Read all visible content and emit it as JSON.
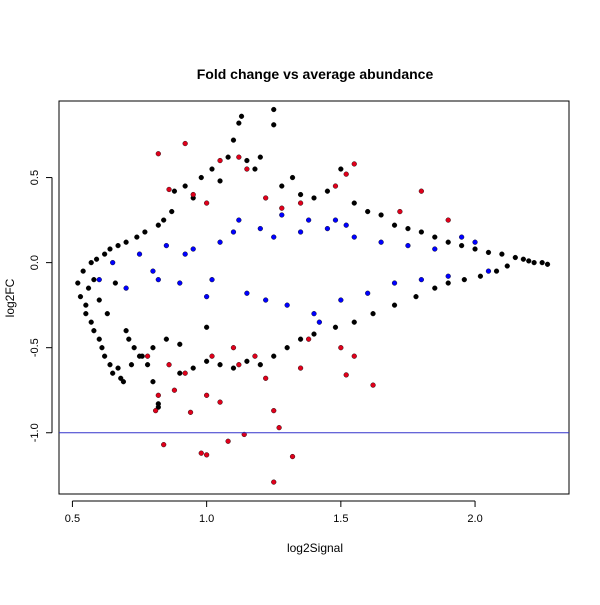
{
  "chart_data": {
    "type": "scatter",
    "title": "Fold change vs average abundance",
    "xlabel": "log2Signal",
    "ylabel": "log2FC",
    "xlim": [
      0.45,
      2.35
    ],
    "ylim": [
      -1.36,
      0.95
    ],
    "xticks": [
      0.5,
      1.0,
      1.5,
      2.0
    ],
    "xtick_labels": [
      "0.5",
      "1.0",
      "1.5",
      "2.0"
    ],
    "yticks": [
      -1.0,
      -0.5,
      0.0,
      0.5
    ],
    "ytick_labels": [
      "-1.0",
      "-0.5",
      "0.0",
      "0.5"
    ],
    "grid": false,
    "legend": "none",
    "hline": {
      "y": -1.0,
      "color": "#3333cc"
    },
    "series_colors": {
      "all": "#000000",
      "blue": "#0000ff",
      "red": "#e0001b"
    },
    "series": [
      {
        "name": "",
        "color": "#000000",
        "points": [
          [
            0.52,
            -0.12
          ],
          [
            0.53,
            -0.2
          ],
          [
            0.54,
            -0.05
          ],
          [
            0.55,
            -0.25
          ],
          [
            0.55,
            -0.3
          ],
          [
            0.56,
            -0.15
          ],
          [
            0.57,
            0.0
          ],
          [
            0.57,
            -0.35
          ],
          [
            0.58,
            -0.4
          ],
          [
            0.58,
            -0.1
          ],
          [
            0.59,
            0.02
          ],
          [
            0.6,
            -0.45
          ],
          [
            0.6,
            -0.22
          ],
          [
            0.61,
            -0.5
          ],
          [
            0.62,
            0.05
          ],
          [
            0.62,
            -0.55
          ],
          [
            0.63,
            -0.3
          ],
          [
            0.64,
            0.08
          ],
          [
            0.64,
            -0.6
          ],
          [
            0.65,
            -0.65
          ],
          [
            0.66,
            -0.12
          ],
          [
            0.67,
            0.1
          ],
          [
            0.67,
            -0.62
          ],
          [
            0.68,
            -0.68
          ],
          [
            0.69,
            -0.7
          ],
          [
            0.7,
            0.12
          ],
          [
            0.7,
            -0.4
          ],
          [
            0.72,
            -0.6
          ],
          [
            0.74,
            0.15
          ],
          [
            0.75,
            -0.55
          ],
          [
            0.77,
            0.18
          ],
          [
            0.8,
            -0.5
          ],
          [
            0.82,
            0.22
          ],
          [
            0.84,
            0.25
          ],
          [
            0.85,
            -0.45
          ],
          [
            0.87,
            0.3
          ],
          [
            0.88,
            0.42
          ],
          [
            0.9,
            -0.48
          ],
          [
            0.92,
            0.45
          ],
          [
            0.95,
            0.38
          ],
          [
            0.98,
            0.5
          ],
          [
            1.0,
            -0.38
          ],
          [
            1.02,
            0.55
          ],
          [
            1.05,
            0.48
          ],
          [
            1.08,
            0.62
          ],
          [
            1.1,
            0.72
          ],
          [
            1.12,
            0.82
          ],
          [
            1.13,
            0.86
          ],
          [
            1.15,
            0.6
          ],
          [
            1.18,
            0.55
          ],
          [
            1.2,
            0.62
          ],
          [
            1.25,
            0.9
          ],
          [
            1.25,
            0.81
          ],
          [
            1.28,
            0.45
          ],
          [
            1.32,
            0.5
          ],
          [
            1.35,
            0.4
          ],
          [
            1.4,
            0.38
          ],
          [
            1.45,
            0.42
          ],
          [
            1.5,
            0.55
          ],
          [
            1.55,
            0.35
          ],
          [
            1.6,
            0.3
          ],
          [
            1.65,
            0.28
          ],
          [
            1.7,
            0.22
          ],
          [
            1.75,
            0.2
          ],
          [
            1.8,
            0.18
          ],
          [
            1.85,
            0.15
          ],
          [
            1.9,
            0.12
          ],
          [
            1.95,
            0.1
          ],
          [
            2.0,
            0.08
          ],
          [
            2.05,
            0.06
          ],
          [
            2.1,
            0.05
          ],
          [
            2.15,
            0.03
          ],
          [
            2.18,
            0.02
          ],
          [
            2.2,
            0.01
          ],
          [
            2.22,
            0.0
          ],
          [
            2.25,
            0.0
          ],
          [
            2.27,
            -0.01
          ],
          [
            2.12,
            -0.02
          ],
          [
            2.08,
            -0.05
          ],
          [
            2.02,
            -0.08
          ],
          [
            1.96,
            -0.1
          ],
          [
            1.9,
            -0.12
          ],
          [
            1.85,
            -0.15
          ],
          [
            1.78,
            -0.2
          ],
          [
            1.7,
            -0.25
          ],
          [
            1.62,
            -0.3
          ],
          [
            1.55,
            -0.35
          ],
          [
            1.48,
            -0.38
          ],
          [
            1.4,
            -0.42
          ],
          [
            1.35,
            -0.45
          ],
          [
            1.3,
            -0.5
          ],
          [
            1.25,
            -0.55
          ],
          [
            1.2,
            -0.6
          ],
          [
            1.15,
            -0.58
          ],
          [
            1.1,
            -0.62
          ],
          [
            1.05,
            -0.6
          ],
          [
            1.0,
            -0.58
          ],
          [
            0.95,
            -0.62
          ],
          [
            0.9,
            -0.65
          ],
          [
            0.82,
            -0.85
          ],
          [
            0.82,
            -0.83
          ],
          [
            0.8,
            -0.7
          ],
          [
            0.78,
            -0.6
          ],
          [
            0.76,
            -0.55
          ],
          [
            0.73,
            -0.5
          ],
          [
            0.71,
            -0.45
          ]
        ]
      },
      {
        "name": "",
        "color": "#0000ff",
        "points": [
          [
            0.6,
            -0.1
          ],
          [
            0.65,
            0.0
          ],
          [
            0.7,
            -0.15
          ],
          [
            0.75,
            0.05
          ],
          [
            0.8,
            -0.05
          ],
          [
            0.85,
            0.1
          ],
          [
            0.9,
            -0.12
          ],
          [
            0.95,
            0.08
          ],
          [
            1.0,
            -0.2
          ],
          [
            1.05,
            0.12
          ],
          [
            1.1,
            0.18
          ],
          [
            1.15,
            -0.18
          ],
          [
            1.2,
            0.2
          ],
          [
            1.25,
            0.15
          ],
          [
            1.3,
            -0.25
          ],
          [
            1.35,
            0.18
          ],
          [
            1.4,
            -0.3
          ],
          [
            1.45,
            0.2
          ],
          [
            1.5,
            -0.22
          ],
          [
            1.55,
            0.15
          ],
          [
            1.6,
            -0.18
          ],
          [
            1.65,
            0.12
          ],
          [
            1.7,
            -0.12
          ],
          [
            1.75,
            0.1
          ],
          [
            1.8,
            -0.1
          ],
          [
            1.85,
            0.08
          ],
          [
            1.9,
            -0.08
          ],
          [
            1.95,
            0.15
          ],
          [
            2.0,
            0.12
          ],
          [
            2.05,
            -0.05
          ],
          [
            1.42,
            -0.35
          ],
          [
            1.48,
            0.25
          ],
          [
            1.52,
            0.22
          ],
          [
            1.38,
            0.25
          ],
          [
            1.28,
            0.28
          ],
          [
            1.22,
            -0.22
          ],
          [
            1.12,
            0.25
          ],
          [
            1.02,
            -0.1
          ],
          [
            0.92,
            0.05
          ],
          [
            0.82,
            -0.1
          ]
        ]
      },
      {
        "name": "",
        "color": "#e0001b",
        "points": [
          [
            0.82,
            0.64
          ],
          [
            0.86,
            0.43
          ],
          [
            0.92,
            0.7
          ],
          [
            0.95,
            0.4
          ],
          [
            1.0,
            0.35
          ],
          [
            1.05,
            0.6
          ],
          [
            1.12,
            0.62
          ],
          [
            1.15,
            0.55
          ],
          [
            1.22,
            0.38
          ],
          [
            1.28,
            0.32
          ],
          [
            1.35,
            0.35
          ],
          [
            1.48,
            0.45
          ],
          [
            1.52,
            0.52
          ],
          [
            1.55,
            0.58
          ],
          [
            1.72,
            0.3
          ],
          [
            1.8,
            0.42
          ],
          [
            1.9,
            0.25
          ],
          [
            0.78,
            -0.55
          ],
          [
            0.82,
            -0.78
          ],
          [
            0.84,
            -1.07
          ],
          [
            0.86,
            -0.6
          ],
          [
            0.88,
            -0.75
          ],
          [
            0.92,
            -0.65
          ],
          [
            0.94,
            -0.88
          ],
          [
            0.98,
            -1.12
          ],
          [
            1.0,
            -0.78
          ],
          [
            1.02,
            -0.55
          ],
          [
            1.05,
            -0.82
          ],
          [
            1.08,
            -1.05
          ],
          [
            1.1,
            -0.5
          ],
          [
            1.12,
            -0.6
          ],
          [
            1.14,
            -1.01
          ],
          [
            1.18,
            -0.55
          ],
          [
            1.22,
            -0.68
          ],
          [
            1.25,
            -0.87
          ],
          [
            1.27,
            -0.97
          ],
          [
            1.25,
            -1.29
          ],
          [
            1.32,
            -1.14
          ],
          [
            1.35,
            -0.62
          ],
          [
            1.38,
            -0.45
          ],
          [
            1.5,
            -0.5
          ],
          [
            1.52,
            -0.66
          ],
          [
            1.62,
            -0.72
          ],
          [
            1.55,
            -0.55
          ],
          [
            0.81,
            -0.87
          ],
          [
            1.0,
            -1.13
          ]
        ]
      }
    ]
  }
}
